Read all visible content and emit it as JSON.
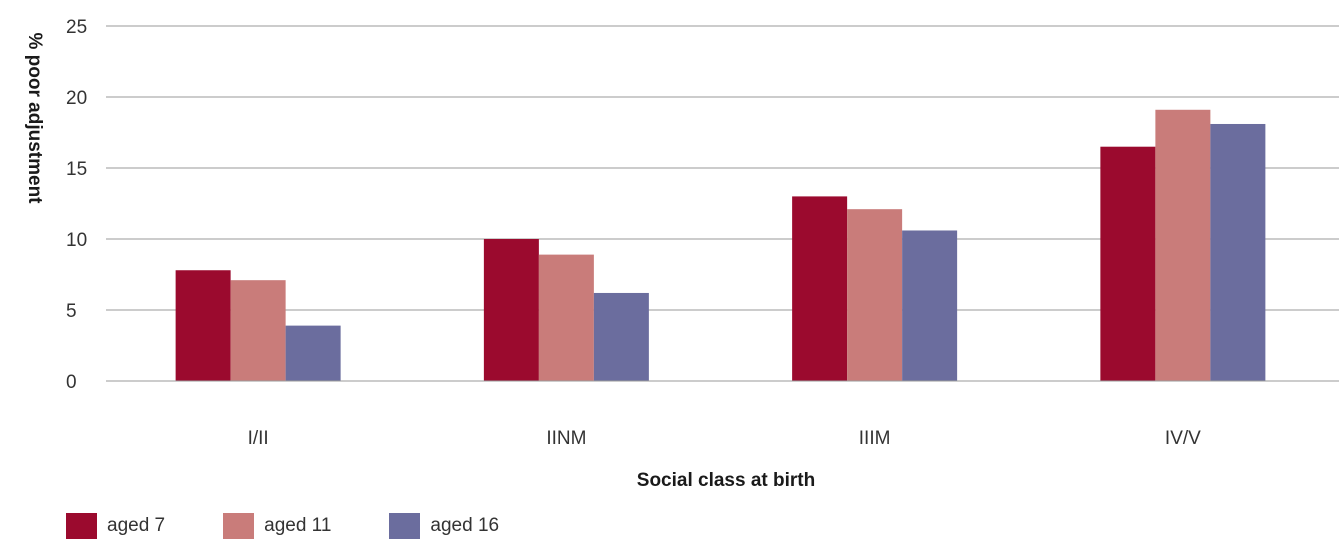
{
  "chart_data": {
    "type": "bar",
    "categories": [
      "I/II",
      "IINM",
      "IIIM",
      "IV/V"
    ],
    "series": [
      {
        "name": "aged 7",
        "values": [
          7.8,
          10.0,
          13.0,
          16.5
        ],
        "color": "#9b0a2e"
      },
      {
        "name": "aged 11",
        "values": [
          7.1,
          8.9,
          12.1,
          19.1
        ],
        "color": "#c97c7a"
      },
      {
        "name": "aged 16",
        "values": [
          3.9,
          6.2,
          10.6,
          18.1
        ],
        "color": "#6b6d9e"
      }
    ],
    "xlabel": "Social class at birth",
    "ylabel": "% poor adjustment",
    "ylim": [
      0,
      25
    ],
    "yticks": [
      "0",
      "5",
      "10",
      "15",
      "20",
      "25"
    ],
    "grid": true,
    "legend_position": "bottom-left"
  }
}
